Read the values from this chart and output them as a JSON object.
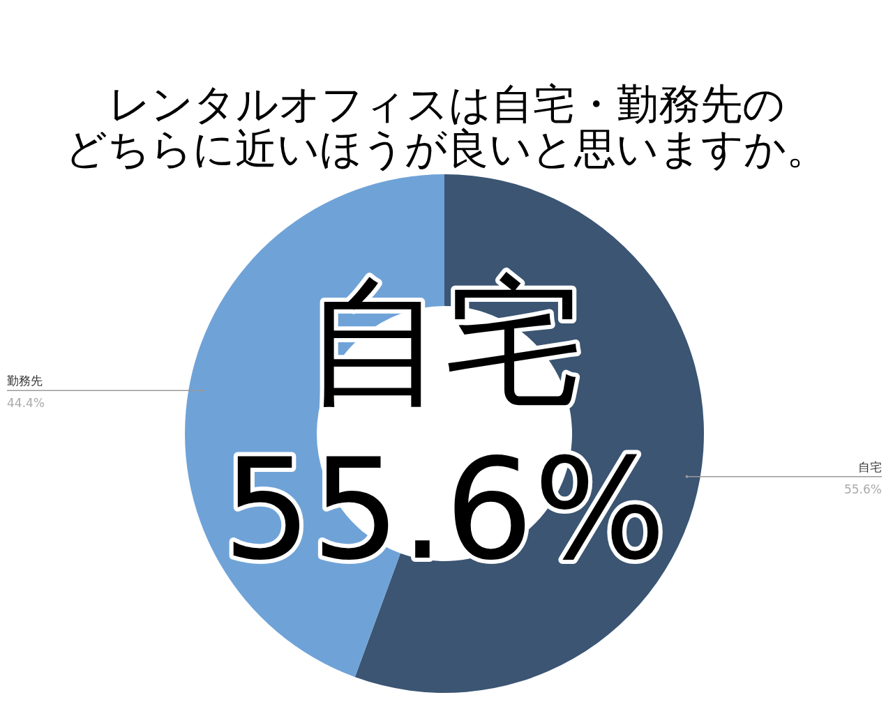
{
  "chart_data": {
    "type": "donut",
    "title": "レンタルオフィスは自宅・勤務先のどちらに近いほうが良いと思いますか。",
    "categories": [
      "自宅",
      "勤務先"
    ],
    "values": [
      55.6,
      44.4
    ],
    "colors": [
      "#3b5573",
      "#6fa3d8"
    ],
    "value_labels": [
      "55.6%",
      "44.4%"
    ],
    "annotations": [
      "自宅",
      "55.6%"
    ]
  }
}
